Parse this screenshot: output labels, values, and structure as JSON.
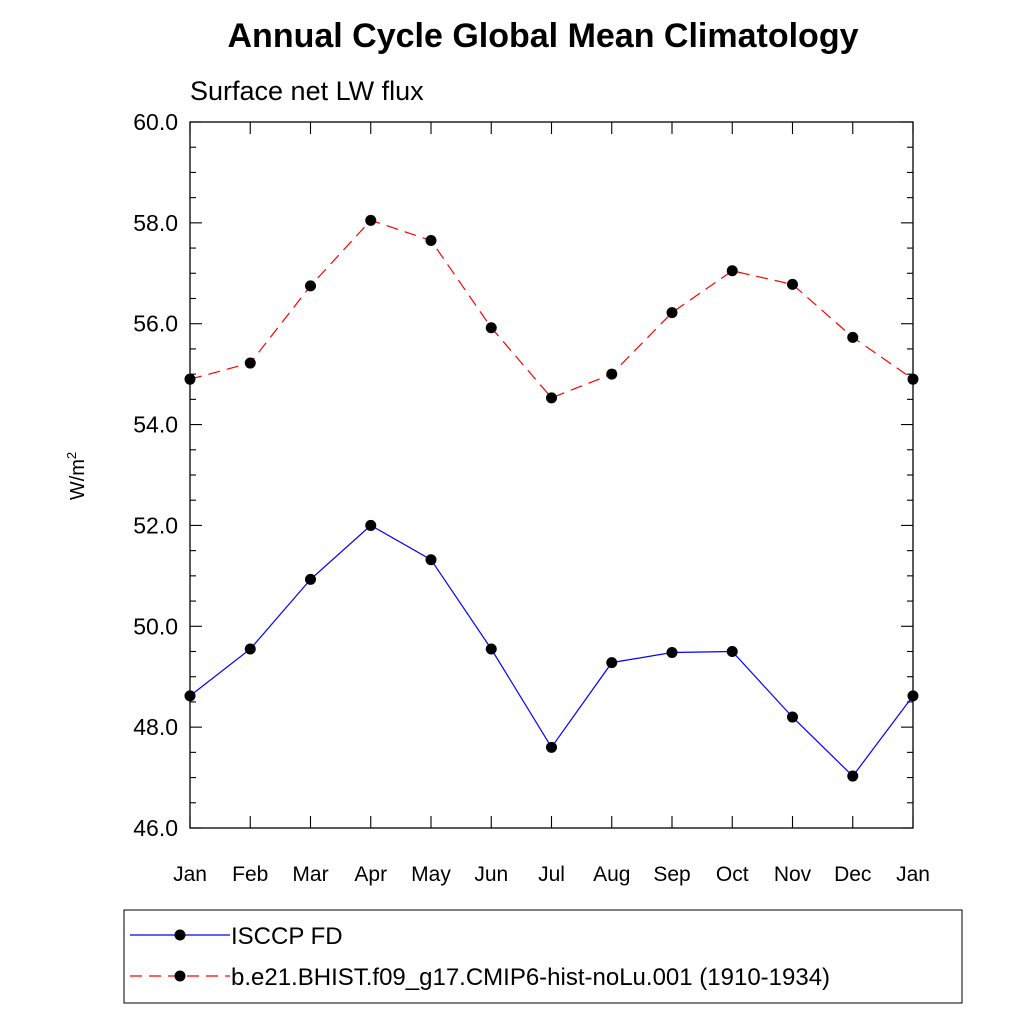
{
  "chart_data": {
    "type": "line",
    "title": "Annual Cycle Global Mean Climatology",
    "subtitle": "Surface net LW flux",
    "xlabel": "",
    "ylabel": "W/m",
    "ylabel_superscript": "2",
    "ylim": [
      46.0,
      60.0
    ],
    "yticks": [
      "46.0",
      "48.0",
      "50.0",
      "52.0",
      "54.0",
      "56.0",
      "58.0",
      "60.0"
    ],
    "categories": [
      "Jan",
      "Feb",
      "Mar",
      "Apr",
      "May",
      "Jun",
      "Jul",
      "Aug",
      "Sep",
      "Oct",
      "Nov",
      "Dec",
      "Jan"
    ],
    "grid": false,
    "legend_position": "bottom",
    "series": [
      {
        "name": "ISCCP FD",
        "color": "#0000ff",
        "line_style": "solid",
        "marker": "filled-circle",
        "values": [
          48.62,
          49.55,
          50.93,
          52.0,
          51.32,
          49.55,
          47.6,
          49.28,
          49.48,
          49.5,
          48.2,
          47.03,
          48.62
        ]
      },
      {
        "name": "b.e21.BHIST.f09_g17.CMIP6-hist-noLu.001 (1910-1934)",
        "color": "#ff0000",
        "line_style": "dashed",
        "marker": "filled-circle",
        "values": [
          54.9,
          55.22,
          56.75,
          58.05,
          57.65,
          55.92,
          54.53,
          55.0,
          56.22,
          57.05,
          56.78,
          55.73,
          54.9
        ]
      }
    ]
  }
}
